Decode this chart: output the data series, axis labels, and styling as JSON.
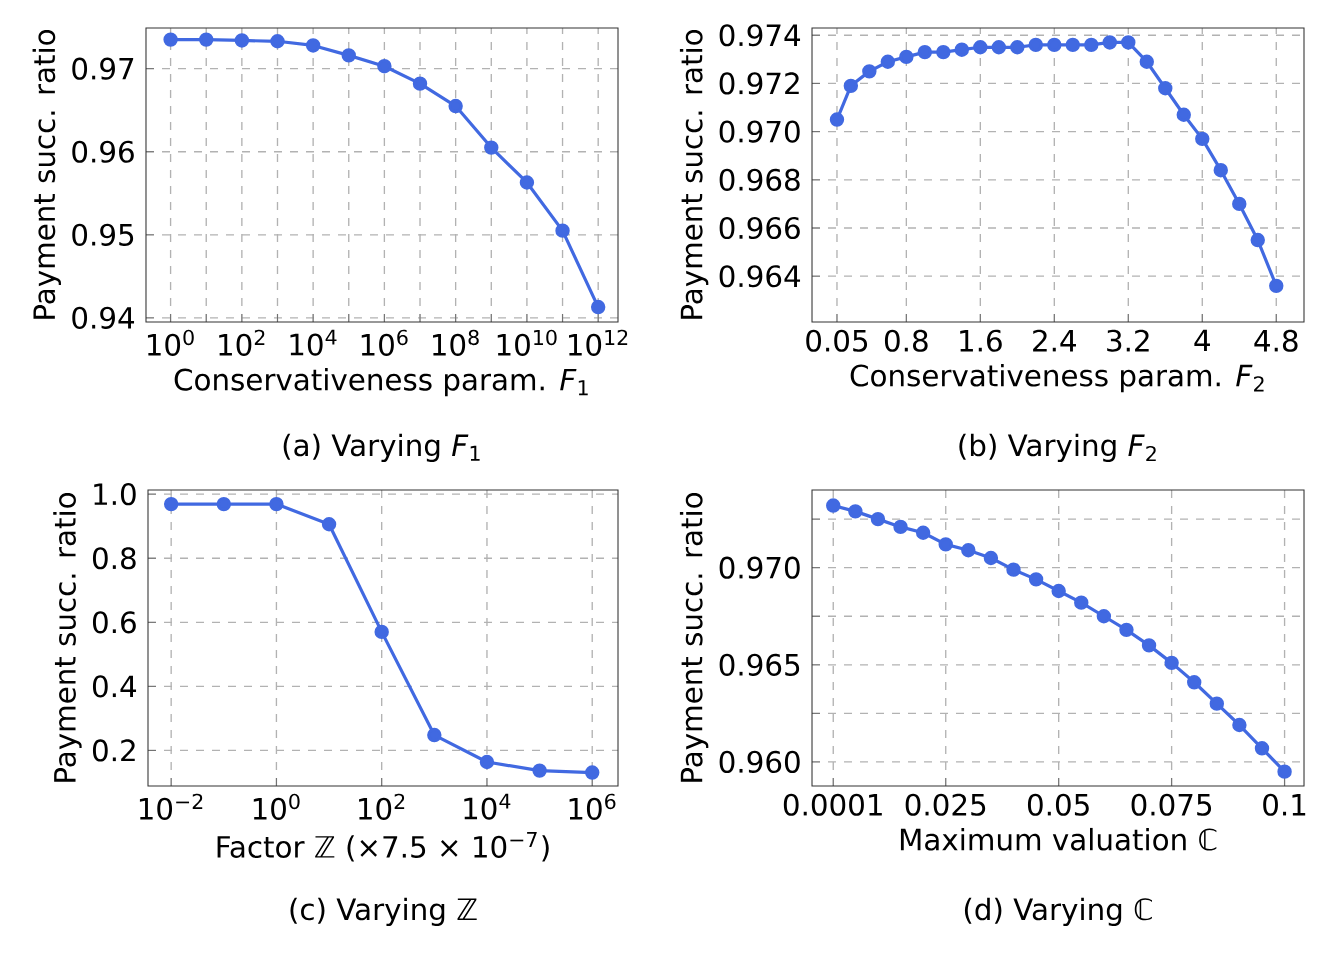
{
  "chart_data": [
    {
      "type": "line",
      "title": "(a) Varying *F*$_{1}$",
      "xlabel": "Conservativeness param. *F*$_{1}$",
      "ylabel": "Payment succ. ratio",
      "log": "x",
      "grid": true,
      "marker": "circle",
      "color": "#4169e1",
      "x": [
        1,
        10,
        100,
        1000,
        10000,
        100000,
        1000000,
        10000000,
        100000000,
        1000000000,
        10000000000,
        100000000000,
        1000000000000
      ],
      "values": [
        0.9735,
        0.9735,
        0.9734,
        0.9733,
        0.9728,
        0.9716,
        0.9703,
        0.9682,
        0.9655,
        0.9605,
        0.9563,
        0.9505,
        0.9413
      ],
      "xlim": [
        0.204,
        3600000000000
      ],
      "ylim": [
        0.9395,
        0.9749
      ],
      "xticks": [
        {
          "value": 1,
          "label": "10$^{0}$"
        },
        {
          "value": 10,
          "label": null
        },
        {
          "value": 100,
          "label": "10$^{2}$"
        },
        {
          "value": 1000,
          "label": null
        },
        {
          "value": 10000,
          "label": "10$^{4}$"
        },
        {
          "value": 100000,
          "label": null
        },
        {
          "value": 1000000,
          "label": "10$^{6}$"
        },
        {
          "value": 10000000,
          "label": null
        },
        {
          "value": 100000000,
          "label": "10$^{8}$"
        },
        {
          "value": 1000000000,
          "label": null
        },
        {
          "value": 10000000000,
          "label": "10$^{10}$"
        },
        {
          "value": 100000000000,
          "label": null
        },
        {
          "value": 1000000000000,
          "label": "10$^{12}$"
        }
      ],
      "yticks": [
        0.94,
        0.95,
        0.96,
        0.97
      ]
    },
    {
      "type": "line",
      "title": "(b) Varying *F*$_{2}$",
      "xlabel": "Conservativeness param. *F*$_{2}$",
      "ylabel": "Payment succ. ratio",
      "grid": true,
      "marker": "circle",
      "color": "#4169e1",
      "x": [
        0.05,
        0.2,
        0.4,
        0.6,
        0.8,
        1.0,
        1.2,
        1.4,
        1.6,
        1.8,
        2.0,
        2.2,
        2.4,
        2.6,
        2.8,
        3.0,
        3.2,
        3.4,
        3.6,
        3.8,
        4.0,
        4.2,
        4.4,
        4.6,
        4.8
      ],
      "values": [
        0.9705,
        0.9719,
        0.9725,
        0.9729,
        0.9731,
        0.9733,
        0.9733,
        0.9734,
        0.9735,
        0.9735,
        0.9735,
        0.9736,
        0.9736,
        0.9736,
        0.9736,
        0.9737,
        0.9737,
        0.9729,
        0.9718,
        0.9707,
        0.9697,
        0.9684,
        0.967,
        0.9655,
        0.9636
      ],
      "xlim": [
        -0.22,
        5.1
      ],
      "ylim": [
        0.9621,
        0.9743
      ],
      "xticks": [
        0.05,
        0.8,
        1.6,
        2.4,
        3.2,
        4,
        4.8
      ],
      "yticks": [
        0.964,
        0.966,
        0.968,
        {
          "value": 0.97,
          "label": "0.970"
        },
        0.972,
        0.974
      ]
    },
    {
      "type": "line",
      "title": "(c) Varying ℤ",
      "xlabel": "Factor ℤ (×7.5 × 10$^{−7}$)",
      "ylabel": "Payment succ. ratio",
      "log": "x",
      "grid": true,
      "marker": "circle",
      "color": "#4169e1",
      "x": [
        0.01,
        0.1,
        1,
        10,
        100,
        1000,
        10000,
        100000,
        1000000
      ],
      "values": [
        0.969,
        0.969,
        0.969,
        0.906,
        0.57,
        0.248,
        0.164,
        0.137,
        0.131
      ],
      "xlim": [
        0.00363,
        3090000
      ],
      "ylim": [
        0.089,
        1.013
      ],
      "xticks": [
        {
          "value": 0.01,
          "label": "10$^{−2}$"
        },
        {
          "value": 1,
          "label": "10$^{0}$"
        },
        {
          "value": 100,
          "label": "10$^{2}$"
        },
        {
          "value": 10000,
          "label": "10$^{4}$"
        },
        {
          "value": 1000000,
          "label": "10$^{6}$"
        }
      ],
      "yticks": [
        0.2,
        0.4,
        0.6,
        0.8,
        {
          "value": 1.0,
          "label": "1.0"
        }
      ]
    },
    {
      "type": "line",
      "title": "(d) Varying ℂ",
      "xlabel": "Maximum valuation ℂ",
      "ylabel": "Payment succ. ratio",
      "grid": true,
      "marker": "circle",
      "color": "#4169e1",
      "x": [
        0.0001,
        0.005,
        0.01,
        0.015,
        0.02,
        0.025,
        0.03,
        0.035,
        0.04,
        0.045,
        0.05,
        0.055,
        0.06,
        0.065,
        0.07,
        0.075,
        0.08,
        0.085,
        0.09,
        0.095,
        0.1
      ],
      "values": [
        0.9732,
        0.9729,
        0.9725,
        0.9721,
        0.9718,
        0.9712,
        0.9709,
        0.9705,
        0.9699,
        0.9694,
        0.9688,
        0.9682,
        0.9675,
        0.9668,
        0.966,
        0.9651,
        0.9641,
        0.963,
        0.9619,
        0.9607,
        0.9595
      ],
      "xlim": [
        -0.0046,
        0.1043
      ],
      "ylim": [
        0.95876,
        0.974
      ],
      "xticks": [
        0.0001,
        0.025,
        0.05,
        0.075,
        0.1
      ],
      "yticks": [
        {
          "value": 0.96,
          "label": "0.960"
        },
        {
          "value": 0.9625,
          "label": null
        },
        {
          "value": 0.965,
          "label": "0.965"
        },
        {
          "value": 0.9675,
          "label": null
        },
        {
          "value": 0.97,
          "label": "0.970"
        },
        {
          "value": 0.9725,
          "label": null
        }
      ]
    }
  ]
}
